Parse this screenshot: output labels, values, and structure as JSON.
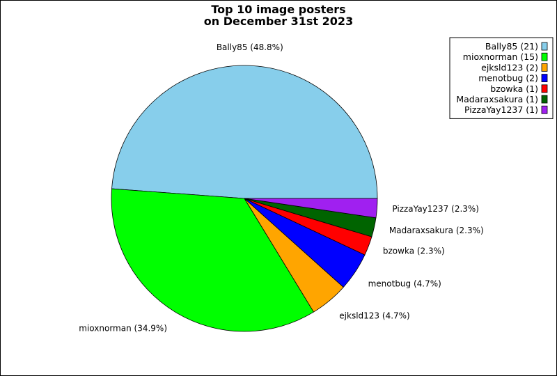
{
  "chart_data": {
    "type": "pie",
    "title_lines": [
      "Top 10 image posters",
      "on December 31st 2023"
    ],
    "start_angle_deg": 0,
    "direction": "counterclockwise",
    "legend_position": "top-right",
    "slices": [
      {
        "label": "Bally85",
        "value": 21,
        "percent_label": "Bally85 (48.8%)",
        "legend_label": "Bally85 (21)",
        "color": "#87CEEB"
      },
      {
        "label": "mioxnorman",
        "value": 15,
        "percent_label": "mioxnorman (34.9%)",
        "legend_label": "mioxnorman (15)",
        "color": "#00FF00"
      },
      {
        "label": "ejksld123",
        "value": 2,
        "percent_label": "ejksld123 (4.7%)",
        "legend_label": "ejksld123 (2)",
        "color": "#FFA500"
      },
      {
        "label": "menotbug",
        "value": 2,
        "percent_label": "menotbug (4.7%)",
        "legend_label": "menotbug (2)",
        "color": "#0000FF"
      },
      {
        "label": "bzowka",
        "value": 1,
        "percent_label": "bzowka (2.3%)",
        "legend_label": "bzowka (1)",
        "color": "#FF0000"
      },
      {
        "label": "Madaraxsakura",
        "value": 1,
        "percent_label": "Madaraxsakura (2.3%)",
        "legend_label": "Madaraxsakura (1)",
        "color": "#006400"
      },
      {
        "label": "PizzaYay1237",
        "value": 1,
        "percent_label": "PizzaYay1237 (2.3%)",
        "legend_label": "PizzaYay1237 (1)",
        "color": "#A020F0"
      }
    ]
  }
}
